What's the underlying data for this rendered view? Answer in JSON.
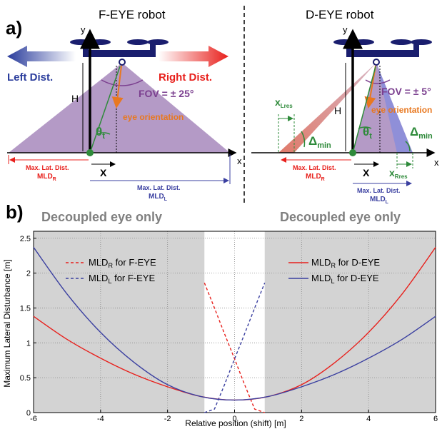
{
  "panel_a": {
    "label": "a)",
    "left": {
      "title": "F-EYE robot",
      "left_arrow_label": "Left Dist.",
      "right_arrow_label": "Right Dist.",
      "fov": "FOV = ± 25°",
      "eye_orientation": "eye orientation",
      "theta": "θ",
      "theta_sub": "t",
      "h_label": "H",
      "y_axis": "y",
      "x_axis": "x",
      "x_shift": "X",
      "mldr_line1": "Max. Lat. Dist.",
      "mldr_line2": "MLD",
      "mldr_sub": "R",
      "mldl_line1": "Max. Lat. Dist.",
      "mldl_line2": "MLD",
      "mldl_sub": "L"
    },
    "right": {
      "title": "D-EYE robot",
      "fov": "FOV = ± 5°",
      "eye_orientation": "eye orientation",
      "theta": "θ",
      "theta_sub": "t",
      "h_label": "H",
      "y_axis": "y",
      "x_axis": "x",
      "x_shift": "X",
      "xlres": "x",
      "xlres_sub": "Lres",
      "xrres": "x",
      "xrres_sub": "Rres",
      "delta_left": "Δ",
      "delta_left_sub": "min",
      "delta_right": "Δ",
      "delta_right_sub": "min",
      "mldr_line1": "Max. Lat. Dist.",
      "mldr_line2": "MLD",
      "mldr_sub": "R",
      "mldl_line1": "Max. Lat. Dist.",
      "mldl_line2": "MLD",
      "mldl_sub": "L"
    }
  },
  "panel_b": {
    "label": "b)",
    "left_region_label": "Decoupled eye only",
    "right_region_label": "Decoupled eye only"
  },
  "colors": {
    "red": "#e8201c",
    "blue": "#3a3fa0",
    "green": "#2e8a3a",
    "orange": "#e87820",
    "purple": "#7b3f8f",
    "fov_fill": "#b49ac6",
    "navy": "#1a1e6e",
    "shade": "#d3d3d3"
  },
  "chart_data": {
    "type": "line",
    "title": "",
    "xlabel": "Relative position (shift) [m]",
    "ylabel": "Maximum Lateral Disturbance [m]",
    "xlim": [
      -6,
      6
    ],
    "ylim": [
      0,
      2.6
    ],
    "xticks": [
      -6,
      -4,
      -2,
      0,
      2,
      4,
      6
    ],
    "yticks": [
      0,
      0.5,
      1,
      1.5,
      2,
      2.5
    ],
    "grid": true,
    "shaded_regions": [
      [
        -6,
        -0.9
      ],
      [
        0.9,
        6
      ]
    ],
    "legend_left": "top-left",
    "legend_right": "top-right",
    "series": [
      {
        "name": "MLDR for F-EYE",
        "name_main": "MLD",
        "name_sub": "R",
        "name_tail": " for F-EYE",
        "color": "#e8201c",
        "dashed": true,
        "x": [
          -0.9,
          -0.6,
          -0.3,
          0,
          0.3,
          0.6,
          0.9
        ],
        "y": [
          1.86,
          1.5,
          1.13,
          0.77,
          0.4,
          0.05,
          0.0
        ]
      },
      {
        "name": "MLDL for F-EYE",
        "name_main": "MLD",
        "name_sub": "L",
        "name_tail": " for F-EYE",
        "color": "#3a3fa0",
        "dashed": true,
        "x": [
          -0.9,
          -0.6,
          -0.3,
          0,
          0.3,
          0.6,
          0.9
        ],
        "y": [
          0.0,
          0.05,
          0.4,
          0.77,
          1.13,
          1.5,
          1.86
        ]
      },
      {
        "name": "MLDR for D-EYE",
        "name_main": "MLD",
        "name_sub": "R",
        "name_tail": " for D-EYE",
        "color": "#e8201c",
        "dashed": false,
        "x": [
          -6,
          -5,
          -4,
          -3,
          -2,
          -1,
          0,
          1,
          2,
          3,
          4,
          5,
          6
        ],
        "y": [
          1.38,
          1.05,
          0.78,
          0.55,
          0.37,
          0.23,
          0.18,
          0.23,
          0.4,
          0.72,
          1.15,
          1.7,
          2.37
        ]
      },
      {
        "name": "MLDL for D-EYE",
        "name_main": "MLD",
        "name_sub": "L",
        "name_tail": " for D-EYE",
        "color": "#3a3fa0",
        "dashed": false,
        "x": [
          -6,
          -5,
          -4,
          -3,
          -2,
          -1,
          0,
          1,
          2,
          3,
          4,
          5,
          6
        ],
        "y": [
          2.37,
          1.7,
          1.15,
          0.72,
          0.4,
          0.23,
          0.18,
          0.23,
          0.37,
          0.55,
          0.78,
          1.05,
          1.38
        ]
      }
    ]
  }
}
